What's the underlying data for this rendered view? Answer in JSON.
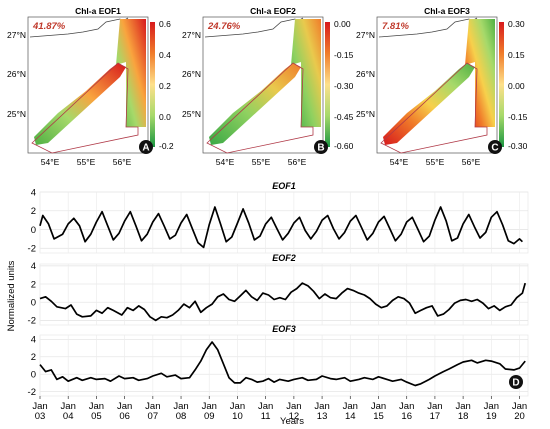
{
  "maps": [
    {
      "title": "Chl-a EOF1",
      "variance": "41.87%",
      "lat_ticks": [
        "27°N",
        "26°N",
        "25°N"
      ],
      "lon_ticks": [
        "54°E",
        "55°E",
        "56°E"
      ],
      "colorbar_ticks": [
        "0.6",
        "0.4",
        "0.2",
        "0.0",
        "-0.2"
      ],
      "colorbar_range": [
        -0.2,
        0.6
      ],
      "letter": "A"
    },
    {
      "title": "Chl-a EOF2",
      "variance": "24.76%",
      "lat_ticks": [
        "27°N",
        "26°N",
        "25°N"
      ],
      "lon_ticks": [
        "54°E",
        "55°E",
        "56°E"
      ],
      "colorbar_ticks": [
        "0.00",
        "-0.15",
        "-0.30",
        "-0.45",
        "-0.60"
      ],
      "colorbar_range": [
        -0.6,
        0.0
      ],
      "letter": "B"
    },
    {
      "title": "Chl-a EOF3",
      "variance": "7.81%",
      "lat_ticks": [
        "27°N",
        "26°N",
        "25°N"
      ],
      "lon_ticks": [
        "54°E",
        "55°E",
        "56°E"
      ],
      "colorbar_ticks": [
        "0.30",
        "0.15",
        "0.00",
        "-0.15",
        "-0.30"
      ],
      "colorbar_range": [
        -0.3,
        0.3
      ],
      "letter": "C"
    }
  ],
  "timeseries_letter": "D",
  "chart_data": {
    "type": "line",
    "xlabel": "Years",
    "ylabel": "Normalized units",
    "x_ticks": [
      "Jan 03",
      "Jan 04",
      "Jan 05",
      "Jan 06",
      "Jan 07",
      "Jan 08",
      "Jan 09",
      "Jan 10",
      "Jan 11",
      "Jan 12",
      "Jan 13",
      "Jan 14",
      "Jan 15",
      "Jan 16",
      "Jan 17",
      "Jan 18",
      "Jan 19",
      "Jan 20"
    ],
    "xlim": [
      2003.0,
      2020.3
    ],
    "panels": [
      {
        "title": "EOF1",
        "ylim": [
          -2.5,
          4
        ],
        "yticks": [
          4,
          2,
          0,
          -2
        ],
        "points": [
          [
            2003.0,
            0.4
          ],
          [
            2003.1,
            1.5
          ],
          [
            2003.3,
            0.6
          ],
          [
            2003.5,
            -1.0
          ],
          [
            2003.8,
            -0.5
          ],
          [
            2004.0,
            0.6
          ],
          [
            2004.2,
            1.2
          ],
          [
            2004.4,
            0.4
          ],
          [
            2004.6,
            -1.3
          ],
          [
            2004.8,
            -0.5
          ],
          [
            2005.0,
            0.8
          ],
          [
            2005.2,
            1.9
          ],
          [
            2005.4,
            0.4
          ],
          [
            2005.6,
            -1.1
          ],
          [
            2005.8,
            -0.4
          ],
          [
            2006.0,
            0.9
          ],
          [
            2006.2,
            1.9
          ],
          [
            2006.4,
            0.4
          ],
          [
            2006.6,
            -1.2
          ],
          [
            2006.8,
            -0.5
          ],
          [
            2007.0,
            0.8
          ],
          [
            2007.2,
            1.7
          ],
          [
            2007.4,
            0.4
          ],
          [
            2007.6,
            -1.0
          ],
          [
            2007.8,
            -0.6
          ],
          [
            2008.0,
            0.7
          ],
          [
            2008.2,
            1.6
          ],
          [
            2008.4,
            0.1
          ],
          [
            2008.6,
            -1.4
          ],
          [
            2008.8,
            -1.9
          ],
          [
            2009.0,
            0.5
          ],
          [
            2009.2,
            2.4
          ],
          [
            2009.4,
            0.6
          ],
          [
            2009.6,
            -1.3
          ],
          [
            2009.8,
            -0.8
          ],
          [
            2010.0,
            0.7
          ],
          [
            2010.2,
            2.2
          ],
          [
            2010.4,
            0.7
          ],
          [
            2010.6,
            -1.1
          ],
          [
            2010.8,
            -0.7
          ],
          [
            2011.0,
            0.6
          ],
          [
            2011.2,
            1.3
          ],
          [
            2011.4,
            0.1
          ],
          [
            2011.6,
            -1.1
          ],
          [
            2011.8,
            -0.4
          ],
          [
            2012.0,
            0.7
          ],
          [
            2012.2,
            1.3
          ],
          [
            2012.4,
            -0.1
          ],
          [
            2012.6,
            -1.0
          ],
          [
            2012.8,
            -0.2
          ],
          [
            2013.0,
            1.0
          ],
          [
            2013.2,
            1.5
          ],
          [
            2013.4,
            0.1
          ],
          [
            2013.6,
            -1.0
          ],
          [
            2013.8,
            -0.3
          ],
          [
            2014.0,
            0.9
          ],
          [
            2014.2,
            1.5
          ],
          [
            2014.4,
            0.2
          ],
          [
            2014.6,
            -1.1
          ],
          [
            2014.8,
            -0.4
          ],
          [
            2015.0,
            0.8
          ],
          [
            2015.2,
            1.4
          ],
          [
            2015.4,
            0.1
          ],
          [
            2015.6,
            -1.2
          ],
          [
            2015.8,
            -0.5
          ],
          [
            2016.0,
            0.8
          ],
          [
            2016.2,
            1.3
          ],
          [
            2016.4,
            0.0
          ],
          [
            2016.6,
            -1.3
          ],
          [
            2016.8,
            -0.7
          ],
          [
            2017.0,
            1.0
          ],
          [
            2017.2,
            2.4
          ],
          [
            2017.4,
            0.9
          ],
          [
            2017.6,
            -1.2
          ],
          [
            2017.8,
            -0.9
          ],
          [
            2018.0,
            0.6
          ],
          [
            2018.2,
            1.6
          ],
          [
            2018.4,
            0.3
          ],
          [
            2018.6,
            -0.9
          ],
          [
            2018.8,
            -0.3
          ],
          [
            2019.0,
            1.3
          ],
          [
            2019.2,
            1.9
          ],
          [
            2019.4,
            0.5
          ],
          [
            2019.6,
            -1.2
          ],
          [
            2019.8,
            -1.5
          ],
          [
            2020.0,
            -1.0
          ],
          [
            2020.1,
            -1.3
          ]
        ]
      },
      {
        "title": "EOF2",
        "ylim": [
          -2.5,
          4.2
        ],
        "yticks": [
          4,
          2,
          0,
          -2
        ],
        "points": [
          [
            2003.0,
            0.4
          ],
          [
            2003.2,
            0.6
          ],
          [
            2003.4,
            0.1
          ],
          [
            2003.6,
            -0.5
          ],
          [
            2003.9,
            -0.7
          ],
          [
            2004.1,
            -0.3
          ],
          [
            2004.3,
            -1.3
          ],
          [
            2004.5,
            -1.6
          ],
          [
            2004.8,
            -1.5
          ],
          [
            2005.0,
            -0.9
          ],
          [
            2005.2,
            -1.2
          ],
          [
            2005.4,
            -0.6
          ],
          [
            2005.6,
            -0.9
          ],
          [
            2005.9,
            -1.4
          ],
          [
            2006.1,
            -0.6
          ],
          [
            2006.3,
            -0.9
          ],
          [
            2006.5,
            -0.4
          ],
          [
            2006.7,
            -0.8
          ],
          [
            2006.9,
            -1.6
          ],
          [
            2007.1,
            -2.0
          ],
          [
            2007.3,
            -1.6
          ],
          [
            2007.5,
            -1.7
          ],
          [
            2007.7,
            -1.4
          ],
          [
            2007.9,
            -0.9
          ],
          [
            2008.1,
            -0.2
          ],
          [
            2008.3,
            -0.6
          ],
          [
            2008.5,
            0.1
          ],
          [
            2008.7,
            -1.1
          ],
          [
            2008.9,
            -0.6
          ],
          [
            2009.1,
            -0.2
          ],
          [
            2009.3,
            0.6
          ],
          [
            2009.5,
            0.9
          ],
          [
            2009.7,
            0.3
          ],
          [
            2009.9,
            0.1
          ],
          [
            2010.1,
            0.7
          ],
          [
            2010.3,
            1.3
          ],
          [
            2010.5,
            0.6
          ],
          [
            2010.7,
            0.2
          ],
          [
            2010.9,
            1.0
          ],
          [
            2011.1,
            0.8
          ],
          [
            2011.3,
            0.3
          ],
          [
            2011.5,
            0.5
          ],
          [
            2011.7,
            0.3
          ],
          [
            2011.9,
            1.1
          ],
          [
            2012.1,
            1.5
          ],
          [
            2012.3,
            2.1
          ],
          [
            2012.5,
            1.8
          ],
          [
            2012.7,
            1.2
          ],
          [
            2012.9,
            0.4
          ],
          [
            2013.1,
            0.9
          ],
          [
            2013.3,
            0.5
          ],
          [
            2013.5,
            0.4
          ],
          [
            2013.7,
            1.0
          ],
          [
            2013.9,
            1.5
          ],
          [
            2014.1,
            1.3
          ],
          [
            2014.3,
            1.0
          ],
          [
            2014.5,
            0.8
          ],
          [
            2014.7,
            0.4
          ],
          [
            2014.9,
            -0.2
          ],
          [
            2015.1,
            -0.6
          ],
          [
            2015.3,
            -0.4
          ],
          [
            2015.5,
            0.2
          ],
          [
            2015.7,
            0.6
          ],
          [
            2015.9,
            0.4
          ],
          [
            2016.1,
            -0.1
          ],
          [
            2016.3,
            -1.2
          ],
          [
            2016.5,
            -0.9
          ],
          [
            2016.7,
            -0.6
          ],
          [
            2016.9,
            -0.4
          ],
          [
            2017.1,
            -1.5
          ],
          [
            2017.3,
            -1.3
          ],
          [
            2017.5,
            -0.8
          ],
          [
            2017.7,
            -0.1
          ],
          [
            2017.9,
            0.2
          ],
          [
            2018.1,
            0.3
          ],
          [
            2018.3,
            0.1
          ],
          [
            2018.5,
            0.3
          ],
          [
            2018.7,
            -0.1
          ],
          [
            2018.9,
            -0.7
          ],
          [
            2019.1,
            -0.4
          ],
          [
            2019.3,
            -0.9
          ],
          [
            2019.5,
            -0.5
          ],
          [
            2019.7,
            -0.3
          ],
          [
            2019.9,
            0.5
          ],
          [
            2020.1,
            1.0
          ],
          [
            2020.2,
            2.1
          ]
        ]
      },
      {
        "title": "EOF3",
        "ylim": [
          -2.5,
          4.5
        ],
        "yticks": [
          4,
          2,
          0,
          -2
        ],
        "points": [
          [
            2003.0,
            1.1
          ],
          [
            2003.2,
            0.3
          ],
          [
            2003.4,
            0.5
          ],
          [
            2003.6,
            -0.6
          ],
          [
            2003.8,
            -0.3
          ],
          [
            2004.0,
            -0.8
          ],
          [
            2004.3,
            -0.4
          ],
          [
            2004.5,
            -0.7
          ],
          [
            2004.8,
            -0.4
          ],
          [
            2005.0,
            -0.6
          ],
          [
            2005.3,
            -0.5
          ],
          [
            2005.5,
            -0.8
          ],
          [
            2005.8,
            -0.2
          ],
          [
            2006.0,
            -0.5
          ],
          [
            2006.3,
            -0.4
          ],
          [
            2006.5,
            -0.7
          ],
          [
            2006.8,
            -0.5
          ],
          [
            2007.0,
            -0.2
          ],
          [
            2007.3,
            0.1
          ],
          [
            2007.5,
            -0.3
          ],
          [
            2007.8,
            -0.1
          ],
          [
            2008.0,
            -0.5
          ],
          [
            2008.3,
            -0.4
          ],
          [
            2008.5,
            0.5
          ],
          [
            2008.7,
            1.5
          ],
          [
            2008.9,
            2.8
          ],
          [
            2009.1,
            3.7
          ],
          [
            2009.3,
            2.8
          ],
          [
            2009.5,
            1.2
          ],
          [
            2009.7,
            -0.4
          ],
          [
            2009.9,
            -1.0
          ],
          [
            2010.1,
            -1.0
          ],
          [
            2010.3,
            -0.4
          ],
          [
            2010.5,
            -0.6
          ],
          [
            2010.7,
            -0.9
          ],
          [
            2010.9,
            -0.8
          ],
          [
            2011.1,
            -0.5
          ],
          [
            2011.3,
            -0.9
          ],
          [
            2011.5,
            -0.6
          ],
          [
            2011.8,
            -0.8
          ],
          [
            2012.0,
            -0.6
          ],
          [
            2012.3,
            -0.4
          ],
          [
            2012.5,
            -0.7
          ],
          [
            2012.8,
            -0.6
          ],
          [
            2013.0,
            -0.2
          ],
          [
            2013.3,
            -0.5
          ],
          [
            2013.5,
            -0.6
          ],
          [
            2013.8,
            -0.4
          ],
          [
            2014.0,
            -0.8
          ],
          [
            2014.3,
            -0.6
          ],
          [
            2014.5,
            -0.4
          ],
          [
            2014.8,
            -0.6
          ],
          [
            2015.0,
            -0.3
          ],
          [
            2015.3,
            -0.6
          ],
          [
            2015.5,
            -0.8
          ],
          [
            2015.8,
            -0.6
          ],
          [
            2016.0,
            -0.9
          ],
          [
            2016.3,
            -1.3
          ],
          [
            2016.5,
            -1.1
          ],
          [
            2016.8,
            -0.6
          ],
          [
            2017.0,
            -0.2
          ],
          [
            2017.3,
            0.3
          ],
          [
            2017.5,
            0.6
          ],
          [
            2017.8,
            1.1
          ],
          [
            2018.0,
            1.4
          ],
          [
            2018.3,
            1.6
          ],
          [
            2018.5,
            1.3
          ],
          [
            2018.8,
            1.6
          ],
          [
            2019.0,
            1.5
          ],
          [
            2019.3,
            1.2
          ],
          [
            2019.5,
            0.6
          ],
          [
            2019.8,
            0.5
          ],
          [
            2020.0,
            0.7
          ],
          [
            2020.2,
            1.5
          ]
        ]
      }
    ]
  }
}
